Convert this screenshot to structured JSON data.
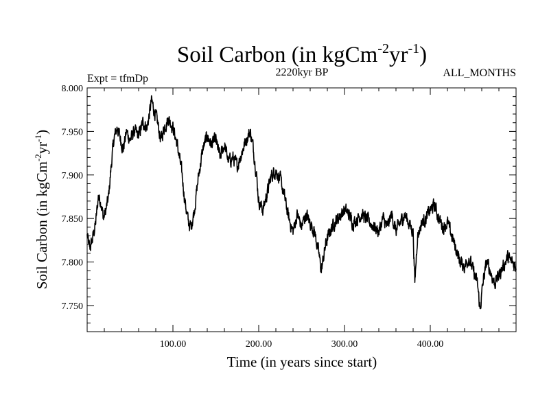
{
  "chart_data": {
    "type": "line",
    "title_main": "Soil Carbon (in kgCm",
    "title_sup1": "-2",
    "title_mid": "yr",
    "title_sup2": "-1",
    "title_end": ")",
    "subtitle_left": "Expt = tfmDp",
    "subtitle_center": "2220kyr BP",
    "subtitle_right": "ALL_MONTHS",
    "xlabel": "Time (in years since start)",
    "ylabel_main": "Soil Carbon (in kgCm",
    "ylabel_sup1": "-2",
    "ylabel_mid": "yr",
    "ylabel_sup2": "-1",
    "ylabel_end": ")",
    "xlim": [
      0,
      500
    ],
    "ylim": [
      7.72,
      8.0
    ],
    "x_ticks": [
      100,
      200,
      300,
      400
    ],
    "x_tick_labels": [
      "100.00",
      "200.00",
      "300.00",
      "400.00"
    ],
    "y_ticks": [
      7.75,
      7.8,
      7.85,
      7.9,
      7.95,
      8.0
    ],
    "y_tick_labels": [
      "7.750",
      "7.800",
      "7.850",
      "7.900",
      "7.950",
      "8.000"
    ],
    "series": [
      {
        "name": "Soil Carbon",
        "color": "#000000",
        "x": [
          0,
          3,
          6,
          10,
          13,
          16,
          19,
          22,
          25,
          28,
          31,
          35,
          38,
          42,
          46,
          50,
          55,
          60,
          65,
          70,
          75,
          78,
          82,
          86,
          90,
          95,
          100,
          105,
          110,
          114,
          118,
          121,
          125,
          130,
          135,
          140,
          145,
          150,
          155,
          160,
          165,
          170,
          175,
          180,
          185,
          190,
          193,
          197,
          200,
          205,
          210,
          215,
          220,
          225,
          230,
          235,
          240,
          245,
          250,
          255,
          260,
          265,
          270,
          273,
          278,
          283,
          288,
          292,
          296,
          300,
          305,
          310,
          315,
          320,
          325,
          330,
          335,
          340,
          345,
          350,
          355,
          360,
          365,
          370,
          375,
          380,
          382,
          385,
          390,
          395,
          400,
          405,
          410,
          415,
          420,
          425,
          430,
          435,
          440,
          445,
          450,
          455,
          458,
          462,
          466,
          470,
          475,
          480,
          485,
          490,
          495,
          500
        ],
        "values": [
          7.83,
          7.815,
          7.825,
          7.845,
          7.875,
          7.87,
          7.85,
          7.86,
          7.875,
          7.91,
          7.94,
          7.955,
          7.945,
          7.93,
          7.95,
          7.94,
          7.95,
          7.945,
          7.96,
          7.955,
          7.985,
          7.975,
          7.96,
          7.94,
          7.955,
          7.965,
          7.955,
          7.935,
          7.905,
          7.87,
          7.845,
          7.84,
          7.86,
          7.9,
          7.93,
          7.945,
          7.935,
          7.94,
          7.92,
          7.935,
          7.915,
          7.92,
          7.91,
          7.925,
          7.94,
          7.95,
          7.935,
          7.905,
          7.87,
          7.86,
          7.88,
          7.9,
          7.905,
          7.895,
          7.875,
          7.85,
          7.835,
          7.855,
          7.84,
          7.855,
          7.845,
          7.835,
          7.81,
          7.79,
          7.82,
          7.835,
          7.845,
          7.85,
          7.855,
          7.86,
          7.855,
          7.845,
          7.85,
          7.855,
          7.85,
          7.845,
          7.84,
          7.835,
          7.85,
          7.84,
          7.855,
          7.835,
          7.845,
          7.855,
          7.845,
          7.835,
          7.775,
          7.83,
          7.845,
          7.85,
          7.86,
          7.865,
          7.85,
          7.84,
          7.845,
          7.83,
          7.815,
          7.8,
          7.795,
          7.805,
          7.79,
          7.775,
          7.745,
          7.78,
          7.8,
          7.79,
          7.775,
          7.785,
          7.795,
          7.805,
          7.8,
          7.795
        ]
      }
    ]
  }
}
